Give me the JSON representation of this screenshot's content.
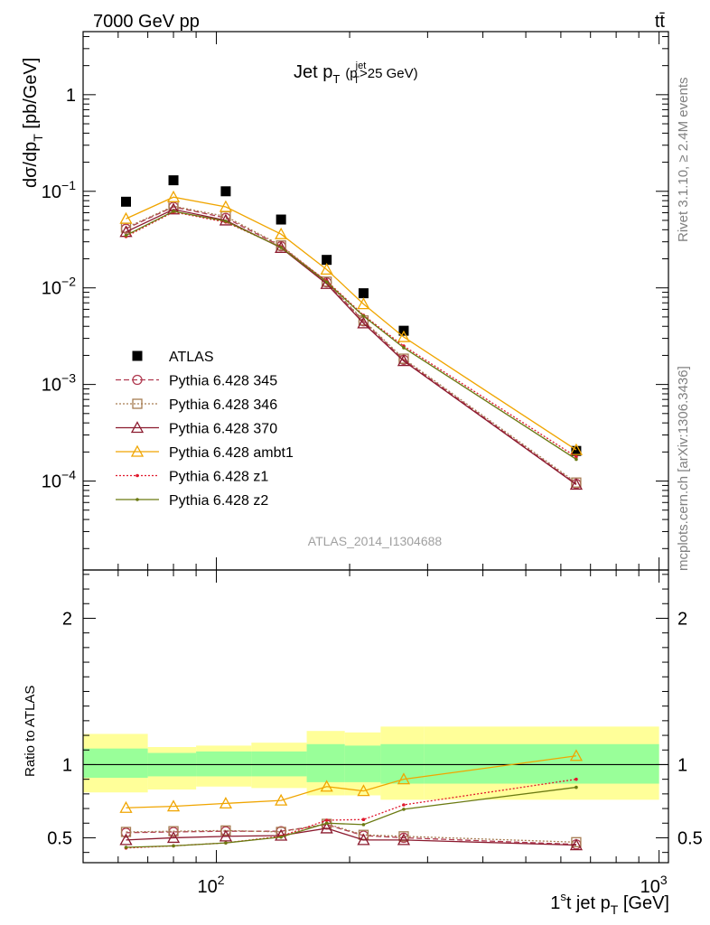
{
  "header": {
    "left": "7000 GeV pp",
    "right": "tt̄"
  },
  "side_labels": {
    "rivet": "Rivet 3.1.10, ≥ 2.4M events",
    "mcplots": "mcplots.cern.ch [arXiv:1306.3436]"
  },
  "analysis_id": "ATLAS_2014_I1304688",
  "chart_data": [
    {
      "type": "line",
      "panel": "main",
      "title_main": "Jet p",
      "title_sub": "T",
      "title_cut_open": "(p",
      "title_cut_sup": "jet",
      "title_cut_sub": "T",
      "title_cut_rest": ">25 GeV)",
      "ylabel_main": "dσ/dp",
      "ylabel_sub": "T",
      "ylabel_unit": " [pb/GeV]",
      "xscale": "log",
      "yscale": "log",
      "xlim": [
        50,
        1050
      ],
      "ylim": [
        1.2e-05,
        4.5
      ],
      "x": [
        62.5,
        80,
        105,
        140,
        177.5,
        215,
        265,
        650
      ],
      "ytick_labels": [
        {
          "base": "10",
          "exp": "−4"
        },
        {
          "base": "10",
          "exp": "−3"
        },
        {
          "base": "10",
          "exp": "−2"
        },
        {
          "base": "10",
          "exp": "−1"
        },
        {
          "base": "1",
          "exp": ""
        }
      ],
      "legend_placement": "lower-left",
      "series": [
        {
          "name": "ATLAS",
          "color": "#000000",
          "marker": "filled-square",
          "values": [
            0.078,
            0.13,
            0.1,
            0.051,
            0.0195,
            0.0088,
            0.0036,
            0.000205
          ]
        },
        {
          "name": "Pythia 6.428 345",
          "color": "#b03a50",
          "style": "dashed",
          "marker": "open-circle",
          "values": [
            0.041,
            0.069,
            0.053,
            0.027,
            0.0114,
            0.0045,
            0.0018,
            9.35e-05
          ]
        },
        {
          "name": "Pythia 6.428 346",
          "color": "#a67c52",
          "style": "dotted",
          "marker": "open-square",
          "values": [
            0.042,
            0.07,
            0.055,
            0.0275,
            0.0116,
            0.0046,
            0.00185,
            9.65e-05
          ]
        },
        {
          "name": "Pythia 6.428 370",
          "color": "#8b1a2e",
          "style": "solid",
          "marker": "open-triangle",
          "values": [
            0.038,
            0.065,
            0.05,
            0.026,
            0.011,
            0.0043,
            0.00175,
            9.2e-05
          ]
        },
        {
          "name": "Pythia 6.428 ambt1",
          "color": "#f0a500",
          "style": "solid",
          "marker": "open-triangle",
          "values": [
            0.052,
            0.087,
            0.069,
            0.036,
            0.0155,
            0.0068,
            0.0031,
            0.00021
          ]
        },
        {
          "name": "Pythia 6.428 z1",
          "color": "#e0182c",
          "style": "dotted",
          "marker": "dot",
          "values": [
            0.034,
            0.061,
            0.048,
            0.0265,
            0.0118,
            0.0052,
            0.0025,
            0.000178
          ]
        },
        {
          "name": "Pythia 6.428 z2",
          "color": "#6b7a12",
          "style": "solid",
          "marker": "dot",
          "values": [
            0.035,
            0.062,
            0.049,
            0.0262,
            0.0115,
            0.0051,
            0.0024,
            0.000168
          ]
        }
      ]
    },
    {
      "type": "line",
      "panel": "ratio",
      "ylabel": "Ratio to ATLAS",
      "xlabel_a": "1",
      "xlabel_sup": "s",
      "xlabel_b": "t jet p",
      "xlabel_sub": "T",
      "xlabel_unit": " [GeV]",
      "xscale": "log",
      "xlim": [
        50,
        1050
      ],
      "ylim": [
        0.33,
        2.33
      ],
      "y_ticks": [
        0.5,
        1,
        2
      ],
      "y_tick_labels": [
        "0.5",
        "1",
        "2"
      ],
      "x_ticks": [
        100,
        1000
      ],
      "x_tick_labels": [
        {
          "base": "10",
          "exp": "2"
        },
        {
          "base": "10",
          "exp": "3"
        }
      ],
      "bin_edges": [
        50,
        70,
        90,
        120,
        160,
        195,
        235,
        295,
        1000
      ],
      "band_yellow": [
        [
          0.81,
          1.21
        ],
        [
          0.83,
          1.12
        ],
        [
          0.85,
          1.13
        ],
        [
          0.84,
          1.15
        ],
        [
          0.79,
          1.23
        ],
        [
          0.79,
          1.22
        ],
        [
          0.76,
          1.26
        ],
        [
          0.76,
          1.26
        ]
      ],
      "band_green": [
        [
          0.91,
          1.11
        ],
        [
          0.92,
          1.08
        ],
        [
          0.92,
          1.09
        ],
        [
          0.92,
          1.09
        ],
        [
          0.88,
          1.14
        ],
        [
          0.88,
          1.13
        ],
        [
          0.87,
          1.14
        ],
        [
          0.87,
          1.14
        ]
      ],
      "x": [
        62.5,
        80,
        105,
        140,
        177.5,
        215,
        265,
        650
      ],
      "reference": 1,
      "series": [
        {
          "name": "Pythia 6.428 345",
          "values": [
            0.535,
            0.54,
            0.545,
            0.545,
            0.59,
            0.515,
            0.5,
            0.455
          ]
        },
        {
          "name": "Pythia 6.428 346",
          "values": [
            0.54,
            0.545,
            0.55,
            0.54,
            0.595,
            0.52,
            0.51,
            0.47
          ]
        },
        {
          "name": "Pythia 6.428 370",
          "values": [
            0.485,
            0.5,
            0.51,
            0.515,
            0.565,
            0.485,
            0.485,
            0.45
          ]
        },
        {
          "name": "Pythia 6.428 ambt1",
          "values": [
            0.705,
            0.715,
            0.735,
            0.755,
            0.85,
            0.82,
            0.9,
            1.06
          ]
        },
        {
          "name": "Pythia 6.428 z1",
          "values": [
            0.43,
            0.445,
            0.465,
            0.51,
            0.62,
            0.625,
            0.725,
            0.9
          ]
        },
        {
          "name": "Pythia 6.428 z2",
          "values": [
            0.435,
            0.445,
            0.465,
            0.505,
            0.6,
            0.59,
            0.695,
            0.845
          ]
        }
      ]
    }
  ]
}
